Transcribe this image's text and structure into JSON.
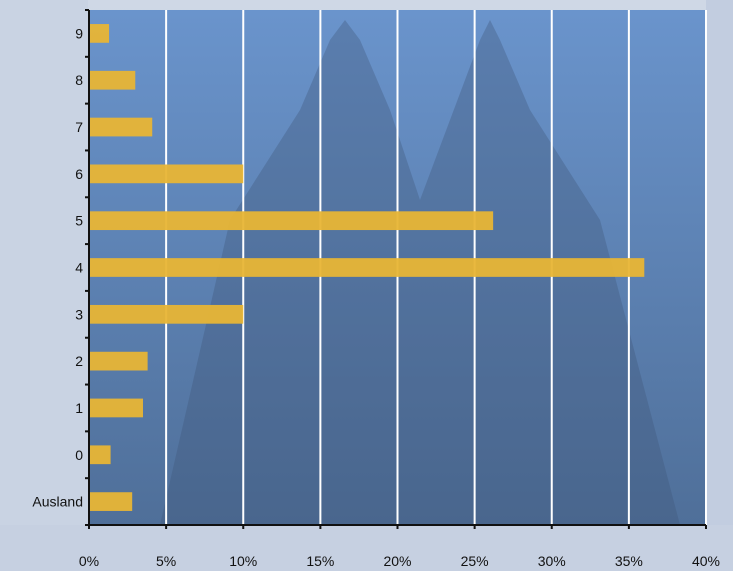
{
  "chart_data": {
    "type": "bar",
    "orientation": "horizontal",
    "title": "",
    "xlabel": "",
    "ylabel": "",
    "categories": [
      "Ausland",
      "0",
      "1",
      "2",
      "3",
      "4",
      "5",
      "6",
      "7",
      "8",
      "9"
    ],
    "values": [
      2.8,
      1.4,
      3.5,
      3.8,
      10.0,
      36.0,
      26.2,
      10.0,
      4.1,
      3.0,
      1.3
    ],
    "xlim": [
      0,
      40
    ],
    "xticks": [
      0,
      5,
      10,
      15,
      20,
      25,
      30,
      35,
      40
    ],
    "xtick_labels": [
      "0%",
      "5%",
      "10%",
      "15%",
      "20%",
      "25%",
      "30%",
      "35%",
      "40%"
    ],
    "grid": "vertical",
    "legend": "none",
    "colors": {
      "plot_background": "#6890c8",
      "bar": "#e8b535",
      "gridline": "#ffffff",
      "axis": "#111111"
    }
  }
}
